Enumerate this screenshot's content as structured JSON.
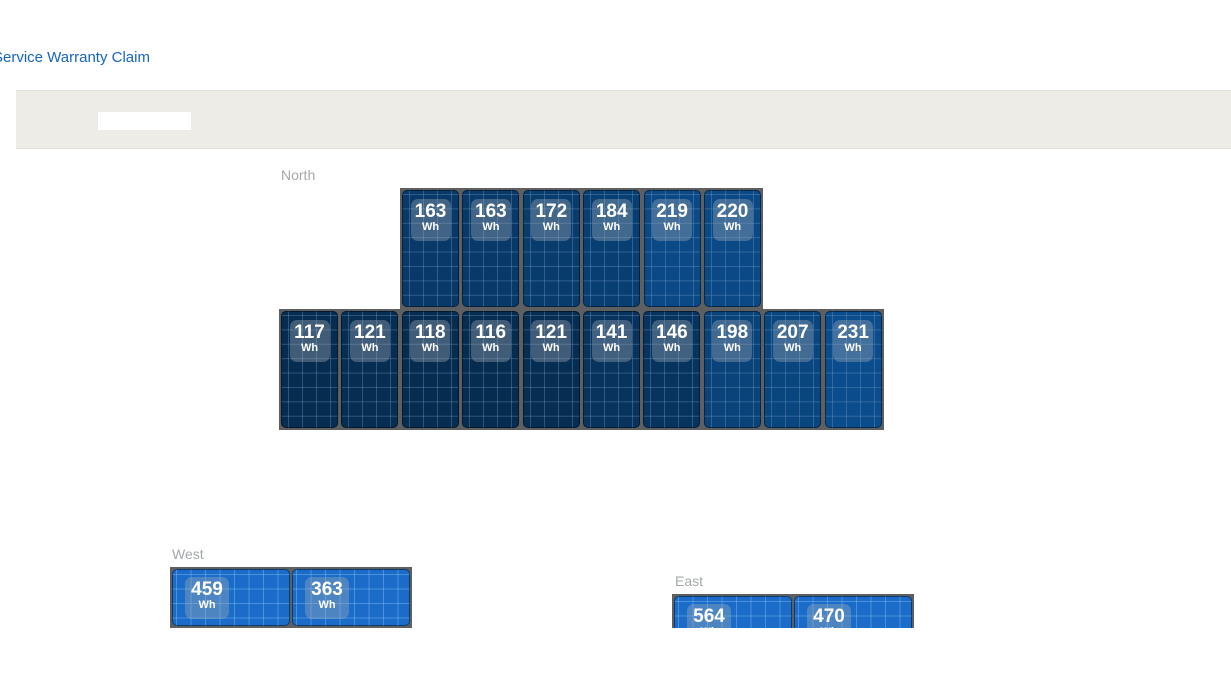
{
  "header": {
    "link_text": "Service Warranty Claim"
  },
  "toolbar": {
    "field_value": ""
  },
  "energy_unit": "Wh",
  "groups": {
    "north": {
      "label": "North",
      "rows": [
        [
          163,
          163,
          172,
          184,
          219,
          220
        ],
        [
          117,
          121,
          118,
          116,
          121,
          141,
          146,
          198,
          207,
          231
        ]
      ]
    },
    "west": {
      "label": "West",
      "panels": [
        459,
        363
      ]
    },
    "east": {
      "label": "East",
      "panels": [
        564,
        470
      ]
    }
  },
  "colors": {
    "panel_low": "#062c4f",
    "panel_high": "#0a4c8c",
    "panel_side": "#1a6cc8",
    "frame": "#5e5f60",
    "link": "#1565c0"
  }
}
